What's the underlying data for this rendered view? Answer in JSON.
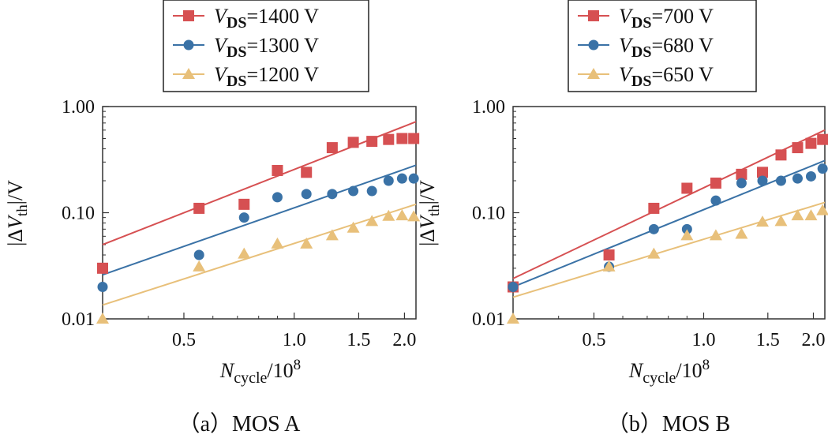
{
  "chart_data": [
    {
      "type": "scatter",
      "caption": "（a）MOS A",
      "xlabel": "N_cycle/10^8",
      "xlabel_main": "N",
      "xlabel_sub": "cycle",
      "xlabel_tail": "/10",
      "xlabel_sup": "8",
      "ylabel": "|ΔV_th|/V",
      "xscale": "log",
      "yscale": "log",
      "xlim": [
        0.3,
        2.15
      ],
      "ylim": [
        0.01,
        1.0
      ],
      "xticks": [
        0.5,
        1.0,
        1.5,
        2.0
      ],
      "xtick_labels": [
        "0.5",
        "1.0",
        "1.5",
        "2.0"
      ],
      "yticks": [
        0.01,
        0.1,
        1.0
      ],
      "ytick_labels": [
        "0.01",
        "0.10",
        "1.00"
      ],
      "legend_position": "top",
      "series": [
        {
          "name": "VDS=1400 V",
          "legend_main": "V",
          "legend_sub": "DS",
          "legend_tail": "=1400 V",
          "marker": "square",
          "color": "#d65052",
          "x": [
            0.3,
            0.55,
            0.73,
            0.9,
            1.08,
            1.27,
            1.45,
            1.63,
            1.81,
            1.97,
            2.12
          ],
          "y": [
            0.03,
            0.11,
            0.12,
            0.25,
            0.24,
            0.41,
            0.46,
            0.47,
            0.49,
            0.5,
            0.5
          ],
          "fit": [
            [
              0.3,
              0.05
            ],
            [
              2.15,
              0.72
            ]
          ]
        },
        {
          "name": "VDS=1300 V",
          "legend_main": "V",
          "legend_sub": "DS",
          "legend_tail": "=1300 V",
          "marker": "circle",
          "color": "#3a72a6",
          "x": [
            0.3,
            0.55,
            0.73,
            0.9,
            1.08,
            1.27,
            1.45,
            1.63,
            1.81,
            1.97,
            2.12
          ],
          "y": [
            0.02,
            0.04,
            0.09,
            0.14,
            0.15,
            0.15,
            0.16,
            0.16,
            0.2,
            0.21,
            0.21
          ],
          "fit": [
            [
              0.3,
              0.026
            ],
            [
              2.15,
              0.28
            ]
          ]
        },
        {
          "name": "VDS=1200 V",
          "legend_main": "V",
          "legend_sub": "DS",
          "legend_tail": "=1200 V",
          "marker": "triangle",
          "color": "#e8c07a",
          "x": [
            0.3,
            0.55,
            0.73,
            0.9,
            1.08,
            1.27,
            1.45,
            1.63,
            1.81,
            1.97,
            2.12
          ],
          "y": [
            0.01,
            0.031,
            0.041,
            0.051,
            0.051,
            0.061,
            0.072,
            0.083,
            0.093,
            0.094,
            0.092
          ],
          "fit": [
            [
              0.3,
              0.0135
            ],
            [
              2.15,
              0.12
            ]
          ]
        }
      ]
    },
    {
      "type": "scatter",
      "caption": "（b）MOS B",
      "xlabel": "N_cycle/10^8",
      "xlabel_main": "N",
      "xlabel_sub": "cycle",
      "xlabel_tail": "/10",
      "xlabel_sup": "8",
      "ylabel": "|ΔV_th|/V",
      "xscale": "log",
      "yscale": "log",
      "xlim": [
        0.3,
        2.15
      ],
      "ylim": [
        0.01,
        1.0
      ],
      "xticks": [
        0.5,
        1.0,
        1.5,
        2.0
      ],
      "xtick_labels": [
        "0.5",
        "1.0",
        "1.5",
        "2.0"
      ],
      "yticks": [
        0.01,
        0.1,
        1.0
      ],
      "ytick_labels": [
        "0.01",
        "0.10",
        "1.00"
      ],
      "legend_position": "top",
      "series": [
        {
          "name": "VDS=700 V",
          "legend_main": "V",
          "legend_sub": "DS",
          "legend_tail": "=700 V",
          "marker": "square",
          "color": "#d65052",
          "x": [
            0.3,
            0.55,
            0.73,
            0.9,
            1.08,
            1.27,
            1.45,
            1.63,
            1.81,
            1.97,
            2.12
          ],
          "y": [
            0.02,
            0.04,
            0.11,
            0.17,
            0.19,
            0.23,
            0.24,
            0.35,
            0.41,
            0.45,
            0.49
          ],
          "fit": [
            [
              0.3,
              0.024
            ],
            [
              2.15,
              0.6
            ]
          ]
        },
        {
          "name": "VDS=680 V",
          "legend_main": "V",
          "legend_sub": "DS",
          "legend_tail": "=680 V",
          "marker": "circle",
          "color": "#3a72a6",
          "x": [
            0.3,
            0.55,
            0.73,
            0.9,
            1.08,
            1.27,
            1.45,
            1.63,
            1.81,
            1.97,
            2.12
          ],
          "y": [
            0.02,
            0.031,
            0.07,
            0.07,
            0.13,
            0.19,
            0.2,
            0.2,
            0.21,
            0.22,
            0.26
          ],
          "fit": [
            [
              0.3,
              0.02
            ],
            [
              2.15,
              0.31
            ]
          ]
        },
        {
          "name": "VDS=650 V",
          "legend_main": "V",
          "legend_sub": "DS",
          "legend_tail": "=650 V",
          "marker": "triangle",
          "color": "#e8c07a",
          "x": [
            0.3,
            0.55,
            0.73,
            0.9,
            1.08,
            1.27,
            1.45,
            1.63,
            1.81,
            1.97,
            2.12
          ],
          "y": [
            0.01,
            0.031,
            0.041,
            0.061,
            0.061,
            0.063,
            0.082,
            0.083,
            0.094,
            0.094,
            0.105
          ],
          "fit": [
            [
              0.3,
              0.016
            ],
            [
              2.15,
              0.125
            ]
          ]
        }
      ]
    }
  ]
}
